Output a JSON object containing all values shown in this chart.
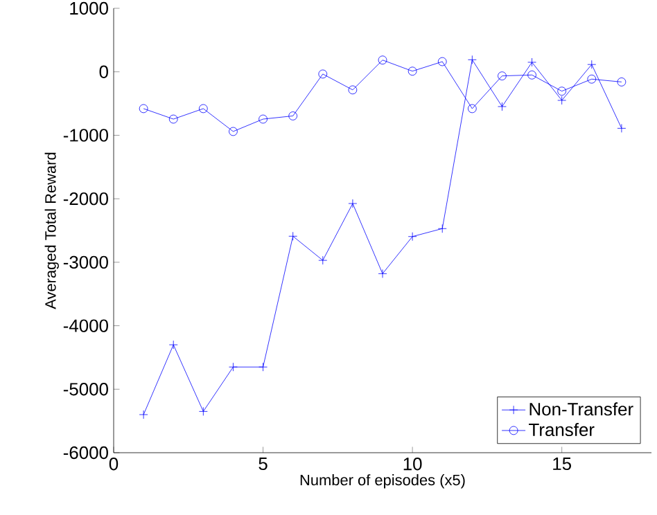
{
  "chart_data": {
    "type": "line",
    "xlabel": "Number of episodes (x5)",
    "ylabel": "Averaged Total Reward",
    "x": [
      1,
      2,
      3,
      4,
      5,
      6,
      7,
      8,
      9,
      10,
      11,
      12,
      13,
      14,
      15,
      16,
      17
    ],
    "series": [
      {
        "name": "Non-Transfer",
        "color": "#0000ff",
        "marker": "cross",
        "values": [
          -5400,
          -4300,
          -5350,
          -4650,
          -4650,
          -2590,
          -2970,
          -2075,
          -3180,
          -2595,
          -2470,
          190,
          -548,
          150,
          -450,
          115,
          -890
        ]
      },
      {
        "name": "Transfer",
        "color": "#0000ff",
        "marker": "circle",
        "values": [
          -580,
          -745,
          -580,
          -940,
          -745,
          -695,
          -35,
          -285,
          185,
          10,
          160,
          -580,
          -65,
          -50,
          -305,
          -115,
          -160
        ]
      }
    ],
    "xlim": [
      0,
      18
    ],
    "ylim": [
      -6000,
      1000
    ],
    "xticks": [
      0,
      5,
      10,
      15
    ],
    "yticks": [
      -6000,
      -5000,
      -4000,
      -3000,
      -2000,
      -1000,
      0,
      1000
    ],
    "legend": "bottom right",
    "grid": false,
    "line_style": "solid"
  }
}
